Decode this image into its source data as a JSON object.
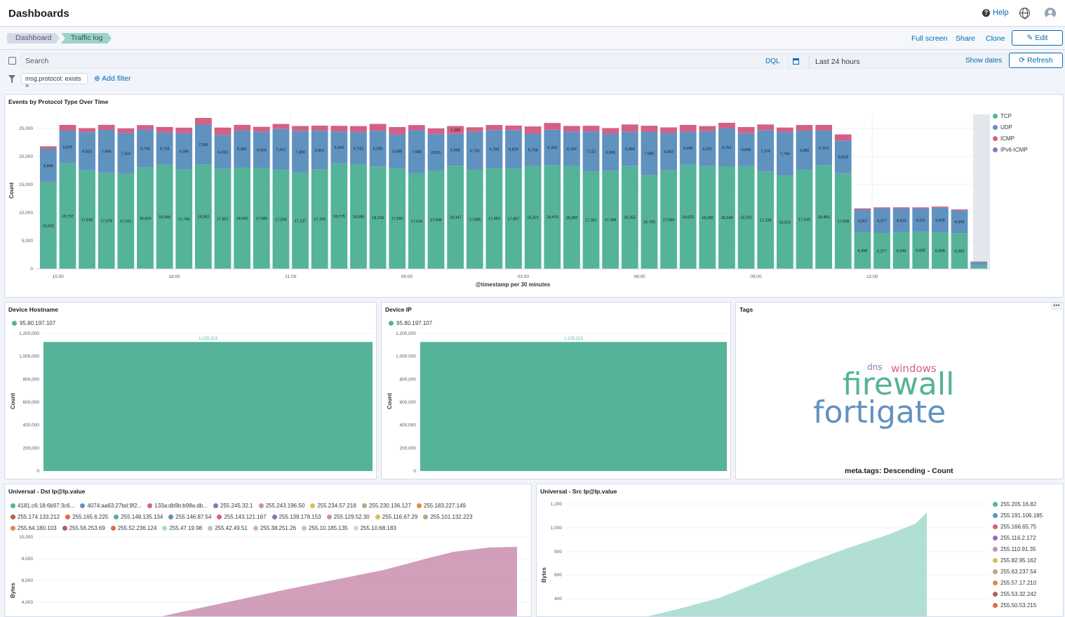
{
  "header": {
    "title": "Dashboards",
    "help": "Help"
  },
  "breadcrumbs": [
    "Dashboard",
    "Traffic log"
  ],
  "actions": {
    "fullscreen": "Full screen",
    "share": "Share",
    "clone": "Clone",
    "edit": "Edit"
  },
  "query": {
    "placeholder": "Search",
    "language": "DQL",
    "time": "Last 24 hours",
    "show_dates": "Show dates",
    "refresh": "Refresh"
  },
  "filters": {
    "pill": "msg.protocol: exists",
    "add": "Add filter"
  },
  "colors": {
    "tcp": "#54b399",
    "udp": "#6092c0",
    "icmp": "#d36086",
    "ipv6": "#9170b8"
  },
  "panels": {
    "events": {
      "title": "Events by Protocol Type Over Time"
    },
    "hostname": {
      "title": "Device Hostname"
    },
    "deviceip": {
      "title": "Device IP"
    },
    "tags": {
      "title": "Tags",
      "subtitle": "meta.tags: Descending - Count",
      "words": [
        "dns",
        "windows",
        "firewall",
        "fortigate"
      ]
    },
    "dst": {
      "title": "Universal - Dst Ip@Ip.value"
    },
    "src": {
      "title": "Universal - Src Ip@Ip.value"
    }
  },
  "chart_data": [
    {
      "type": "bar",
      "stacked": true,
      "title": "Events by Protocol Type Over Time",
      "xlabel": "@timestamp per 30 minutes",
      "ylabel": "Count",
      "ylim": [
        0,
        27500
      ],
      "yticks": [
        "0",
        "5,000",
        "10,000",
        "15,000",
        "20,000",
        "25,000"
      ],
      "xticks": [
        "15:00",
        "18:00",
        "21:00",
        "00:00",
        "03:00",
        "06:00",
        "09:00",
        "12:00"
      ],
      "legend": [
        "TCP",
        "UDP",
        "ICMP",
        "IPv6-ICMP"
      ],
      "tcp": [
        15402,
        18797,
        17535,
        17079,
        17011,
        18029,
        18549,
        17745,
        18582,
        17821,
        18062,
        17989,
        17594,
        17137,
        17703,
        18775,
        18580,
        18218,
        17952,
        17016,
        17506,
        18347,
        17685,
        17953,
        17887,
        18321,
        18470,
        18306,
        17367,
        17458,
        18355,
        16703,
        17550,
        18522,
        18285,
        18248,
        18321,
        17336,
        16615,
        17639,
        18483,
        17028,
        6498,
        6377,
        6549,
        6605,
        6458,
        6350,
        700
      ],
      "tcp_labels": [
        "15,402",
        "18,797",
        "17,535",
        "17,079",
        "17,011",
        "18,029",
        "18,549",
        "17,745",
        "18,582",
        "17,821",
        "18,062",
        "17,989",
        "17,594",
        "17,137",
        "17,703",
        "18,775",
        "18,580",
        "18,218",
        "17,952",
        "17,016",
        "17,506",
        "18,347",
        "17,685",
        "17,953",
        "17,887",
        "18,321",
        "18,470",
        "18,306",
        "17,367",
        "17,458",
        "18,355",
        "16,703",
        "17,550",
        "18,522",
        "18,285",
        "18,248",
        "18,321",
        "17,336",
        "16,615",
        "17,639",
        "18,483",
        "17,028",
        "6,498",
        "6,377",
        "6,549",
        "6,605",
        "6,458",
        "6,350",
        ""
      ],
      "udp": [
        5968,
        5829,
        6820,
        7666,
        7164,
        6765,
        5719,
        6396,
        7096,
        6033,
        6581,
        6405,
        7312,
        7400,
        6901,
        5693,
        5743,
        6390,
        5998,
        7686,
        6516,
        5690,
        6730,
        6768,
        6829,
        5738,
        6303,
        6143,
        7112,
        6606,
        6058,
        7680,
        6642,
        5905,
        6237,
        6761,
        5835,
        7376,
        7745,
        6980,
        6154,
        5818,
        4067,
        4377,
        4210,
        4151,
        4435,
        4043,
        500
      ],
      "udp_labels": [
        "5,968",
        "5,829",
        "6,820",
        "7,666",
        "7,164",
        "6,765",
        "5,719",
        "6,396",
        "7,096",
        "6,033",
        "6,581",
        "6,405",
        "7,312",
        "7,400",
        "6,901",
        "5,693",
        "5,743",
        "6,390",
        "5,998",
        "7,686",
        "6,516",
        "5,690",
        "6,730",
        "6,768",
        "6,829",
        "5,738",
        "6,303",
        "6,143",
        "7,112",
        "6,606",
        "6,058",
        "7,680",
        "6,642",
        "5,905",
        "6,237",
        "6,761",
        "5,835",
        "7,376",
        "7,745",
        "6,980",
        "6,154",
        "5,818",
        "4,067",
        "4,377",
        "4,210",
        "4,151",
        "4,435",
        "4,043",
        ""
      ],
      "icmp": [
        450,
        1000,
        700,
        900,
        850,
        800,
        1000,
        1000,
        1200,
        1300,
        1000,
        900,
        900,
        900,
        900,
        1000,
        1100,
        1200,
        1300,
        900,
        1000,
        1394,
        800,
        900,
        800,
        1300,
        1200,
        1000,
        1000,
        1000,
        1300,
        1100,
        1000,
        1200,
        900,
        1000,
        1100,
        1000,
        800,
        1000,
        1000,
        1100,
        200,
        200,
        200,
        200,
        200,
        200,
        100
      ],
      "icmp_labels": [
        "",
        "",
        "",
        "",
        "",
        "",
        "",
        "",
        "",
        "",
        "",
        "",
        "",
        "",
        "",
        "",
        "",
        "",
        "",
        "",
        "",
        "1,394",
        "",
        "",
        "",
        "",
        "",
        "",
        "",
        "",
        "",
        "",
        "",
        "",
        "",
        "",
        "",
        "",
        "",
        "",
        "",
        "",
        "",
        "",
        "",
        "",
        "",
        "",
        ""
      ]
    },
    {
      "type": "bar",
      "title": "Device Hostname",
      "ylabel": "Count",
      "ylim": [
        0,
        1200000
      ],
      "yticks": [
        "0",
        "200,000",
        "400,000",
        "600,000",
        "800,000",
        "1,000,000",
        "1,200,000"
      ],
      "series": [
        {
          "name": "95.80.197.107",
          "value": 1125213,
          "label": "1,125,213"
        }
      ]
    },
    {
      "type": "bar",
      "title": "Device IP",
      "ylabel": "Count",
      "ylim": [
        0,
        1200000
      ],
      "yticks": [
        "0",
        "200,000",
        "400,000",
        "600,000",
        "800,000",
        "1,000,000",
        "1,200,000"
      ],
      "series": [
        {
          "name": "95.80.197.107",
          "value": 1125213,
          "label": "1,125,213"
        }
      ]
    },
    {
      "type": "area",
      "title": "Universal - Dst Ip@Ip.value",
      "ylabel": "Bytes",
      "yticks": [
        "4,000",
        "6,000",
        "8,000",
        "10,000"
      ],
      "legend": [
        {
          "name": "4181:c6:18:6b97:3c6...",
          "color": "#54b399"
        },
        {
          "name": "4074:aa63:27bd:9f2...",
          "color": "#6092c0"
        },
        {
          "name": "133a:db9b:b98a:db...",
          "color": "#d36086"
        },
        {
          "name": "255.245.32.1",
          "color": "#9170b8"
        },
        {
          "name": "255.243.196.50",
          "color": "#ca8eae"
        },
        {
          "name": "255.234.57.218",
          "color": "#d6bf57"
        },
        {
          "name": "255.230.136.127",
          "color": "#b9a888"
        },
        {
          "name": "255.183.227.149",
          "color": "#da8b45"
        },
        {
          "name": "255.174.133.212",
          "color": "#aa6556"
        },
        {
          "name": "255.165.6.225",
          "color": "#e7664c"
        },
        {
          "name": "255.148.135.134",
          "color": "#54b399"
        },
        {
          "name": "255.146.87.54",
          "color": "#6092c0"
        },
        {
          "name": "255.143.121.167",
          "color": "#d36086"
        },
        {
          "name": "255.139.178.153",
          "color": "#9170b8"
        },
        {
          "name": "255.129.52.30",
          "color": "#ca8eae"
        },
        {
          "name": "255.116.67.29",
          "color": "#d6bf57"
        },
        {
          "name": "255.101.132.223",
          "color": "#b9a888"
        },
        {
          "name": "255.64.180.103",
          "color": "#da8b45"
        },
        {
          "name": "255.56.253.69",
          "color": "#aa6556"
        },
        {
          "name": "255.52.236.124",
          "color": "#e7664c"
        },
        {
          "name": "255.47.19.98",
          "color": "#a8dccf"
        },
        {
          "name": "255.42.49.51",
          "color": "#a8c4e0"
        },
        {
          "name": "255.38.251.26",
          "color": "#e8a5bf"
        },
        {
          "name": "255.10.185.135",
          "color": "#c8b8dc"
        },
        {
          "name": "255.10.68.183",
          "color": "#e8cdd9"
        }
      ]
    },
    {
      "type": "area",
      "title": "Universal - Src Ip@Ip.value",
      "ylabel": "Bytes",
      "yticks": [
        "400",
        "600",
        "800",
        "1,000",
        "1,200"
      ],
      "legend": [
        {
          "name": "255.205.16.82",
          "color": "#54b399"
        },
        {
          "name": "255.191.106.185",
          "color": "#6092c0"
        },
        {
          "name": "255.166.65.75",
          "color": "#d36086"
        },
        {
          "name": "255.116.2.172",
          "color": "#9170b8"
        },
        {
          "name": "255.110.91.35",
          "color": "#ca8eae"
        },
        {
          "name": "255.82.95.162",
          "color": "#d6bf57"
        },
        {
          "name": "255.63.237.54",
          "color": "#b9a888"
        },
        {
          "name": "255.57.17.210",
          "color": "#da8b45"
        },
        {
          "name": "255.53.32.242",
          "color": "#aa6556"
        },
        {
          "name": "255.50.53.215",
          "color": "#e7664c"
        }
      ]
    }
  ]
}
